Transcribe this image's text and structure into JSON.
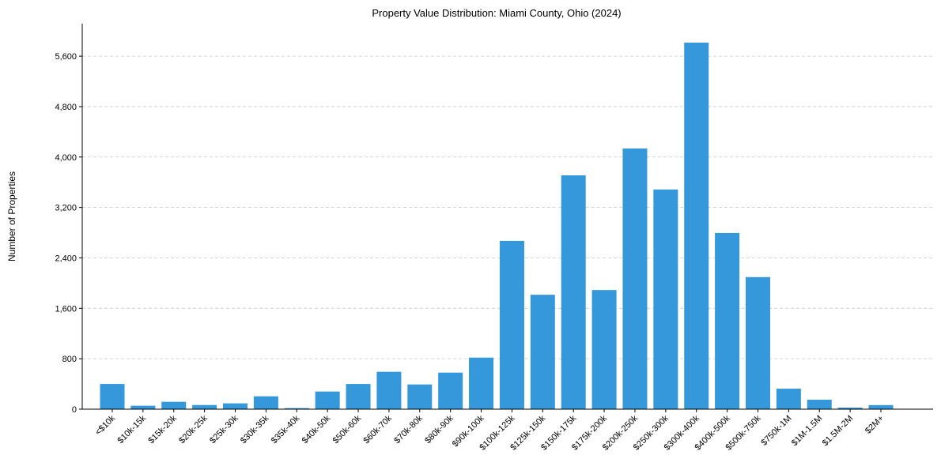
{
  "chart_data": {
    "type": "bar",
    "title": "Property Value Distribution: Miami County, Ohio (2024)",
    "xlabel": "",
    "ylabel": "Number of Properties",
    "categories": [
      "<$10k",
      "$10k-15k",
      "$15k-20k",
      "$20k-25k",
      "$25k-30k",
      "$30k-35k",
      "$35k-40k",
      "$40k-50k",
      "$50k-60k",
      "$60k-70k",
      "$70k-80k",
      "$80k-90k",
      "$90k-100k",
      "$100k-125k",
      "$125k-150k",
      "$150k-175k",
      "$175k-200k",
      "$200k-250k",
      "$250k-300k",
      "$300k-400k",
      "$400k-500k",
      "$500k-750k",
      "$750k-1M",
      "$1M-1.5M",
      "$1.5M-2M",
      "$2M+"
    ],
    "values": [
      400,
      55,
      117,
      66,
      92,
      204,
      17,
      280,
      400,
      593,
      392,
      580,
      818,
      2670,
      1815,
      3710,
      1890,
      4135,
      3485,
      5815,
      2795,
      2095,
      325,
      150,
      25,
      65
    ],
    "ylim": [
      0,
      6115
    ],
    "yticks": [
      0,
      800,
      1600,
      2400,
      3200,
      4000,
      4800,
      5600
    ],
    "ytick_labels": [
      "0",
      "800",
      "1,600",
      "2,400",
      "3,200",
      "4,000",
      "4,800",
      "5,600"
    ],
    "grid": "horizontal dashed",
    "bar_color": "#3498db"
  }
}
